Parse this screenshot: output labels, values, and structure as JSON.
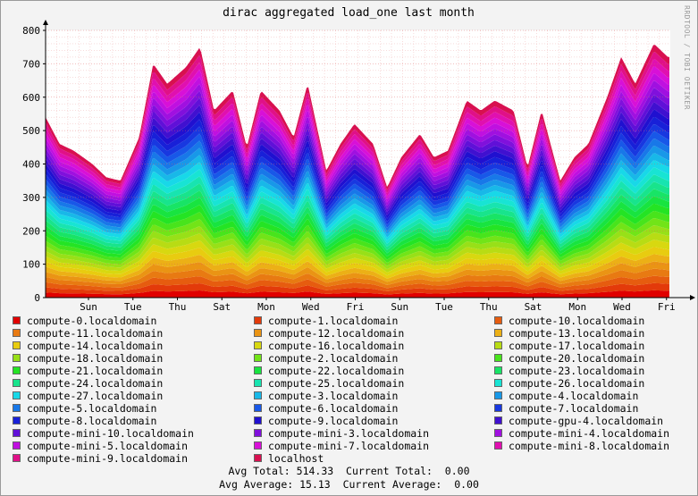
{
  "watermark": "RRDTOOL / TOBI OETIKER",
  "chart_data": {
    "type": "area",
    "title": "dirac aggregated load_one last month",
    "ylim": [
      0,
      800
    ],
    "y_ticks": [
      0,
      100,
      200,
      300,
      400,
      500,
      600,
      700,
      800
    ],
    "x_ticks": [
      "Sun",
      "Tue",
      "Thu",
      "Sat",
      "Mon",
      "Wed",
      "Fri",
      "Sun",
      "Tue",
      "Thu",
      "Sat",
      "Mon",
      "Wed",
      "Fri"
    ],
    "grid": true,
    "stacked": true,
    "total": {
      "x": [
        0,
        0.3,
        0.6,
        1,
        1.3,
        1.6,
        2,
        2.3,
        2.6,
        3,
        3.3,
        3.6,
        4,
        4.3,
        4.6,
        5,
        5.3,
        5.6,
        6,
        6.3,
        6.6,
        7,
        7.3,
        7.6,
        8,
        8.3,
        8.6,
        9,
        9.3,
        9.6,
        10,
        10.3,
        10.6,
        11,
        11.3,
        11.6,
        12,
        12.3,
        12.6,
        13,
        13.3
      ],
      "values": [
        540,
        460,
        440,
        400,
        360,
        350,
        480,
        700,
        640,
        690,
        750,
        560,
        620,
        450,
        620,
        560,
        480,
        640,
        380,
        460,
        520,
        460,
        330,
        420,
        490,
        420,
        440,
        590,
        560,
        590,
        560,
        390,
        560,
        350,
        420,
        460,
        600,
        720,
        640,
        760,
        720
      ]
    },
    "series": [
      {
        "name": "compute-0.localdomain",
        "color": "#e00000"
      },
      {
        "name": "compute-1.localdomain",
        "color": "#e33a0a"
      },
      {
        "name": "compute-10.localdomain",
        "color": "#e65c0f"
      },
      {
        "name": "compute-11.localdomain",
        "color": "#e87a12"
      },
      {
        "name": "compute-12.localdomain",
        "color": "#ea9414"
      },
      {
        "name": "compute-13.localdomain",
        "color": "#ecb016"
      },
      {
        "name": "compute-14.localdomain",
        "color": "#e8cc10"
      },
      {
        "name": "compute-16.localdomain",
        "color": "#d8d810"
      },
      {
        "name": "compute-17.localdomain",
        "color": "#b8dc14"
      },
      {
        "name": "compute-18.localdomain",
        "color": "#98e018"
      },
      {
        "name": "compute-2.localdomain",
        "color": "#72e418"
      },
      {
        "name": "compute-20.localdomain",
        "color": "#48e41c"
      },
      {
        "name": "compute-21.localdomain",
        "color": "#24e424"
      },
      {
        "name": "compute-22.localdomain",
        "color": "#18e440"
      },
      {
        "name": "compute-23.localdomain",
        "color": "#18e466"
      },
      {
        "name": "compute-24.localdomain",
        "color": "#18e48c"
      },
      {
        "name": "compute-25.localdomain",
        "color": "#18e4b0"
      },
      {
        "name": "compute-26.localdomain",
        "color": "#18e4d4"
      },
      {
        "name": "compute-27.localdomain",
        "color": "#18d8e8"
      },
      {
        "name": "compute-3.localdomain",
        "color": "#18b8e8"
      },
      {
        "name": "compute-4.localdomain",
        "color": "#1898e8"
      },
      {
        "name": "compute-5.localdomain",
        "color": "#1878e8"
      },
      {
        "name": "compute-6.localdomain",
        "color": "#1858e8"
      },
      {
        "name": "compute-7.localdomain",
        "color": "#1838e0"
      },
      {
        "name": "compute-8.localdomain",
        "color": "#1820d8"
      },
      {
        "name": "compute-9.localdomain",
        "color": "#2010d0"
      },
      {
        "name": "compute-gpu-4.localdomain",
        "color": "#4010d0"
      },
      {
        "name": "compute-mini-10.localdomain",
        "color": "#6010d8"
      },
      {
        "name": "compute-mini-3.localdomain",
        "color": "#8010dc"
      },
      {
        "name": "compute-mini-4.localdomain",
        "color": "#a010e0"
      },
      {
        "name": "compute-mini-5.localdomain",
        "color": "#c010e0"
      },
      {
        "name": "compute-mini-7.localdomain",
        "color": "#d810d8"
      },
      {
        "name": "compute-mini-8.localdomain",
        "color": "#e010b0"
      },
      {
        "name": "compute-mini-9.localdomain",
        "color": "#e01088"
      },
      {
        "name": "localhost",
        "color": "#d81050"
      }
    ]
  },
  "stats": {
    "line1": "Avg Total: 514.33  Current Total:  0.00",
    "line2": "Avg Average: 15.13  Current Average:  0.00"
  }
}
